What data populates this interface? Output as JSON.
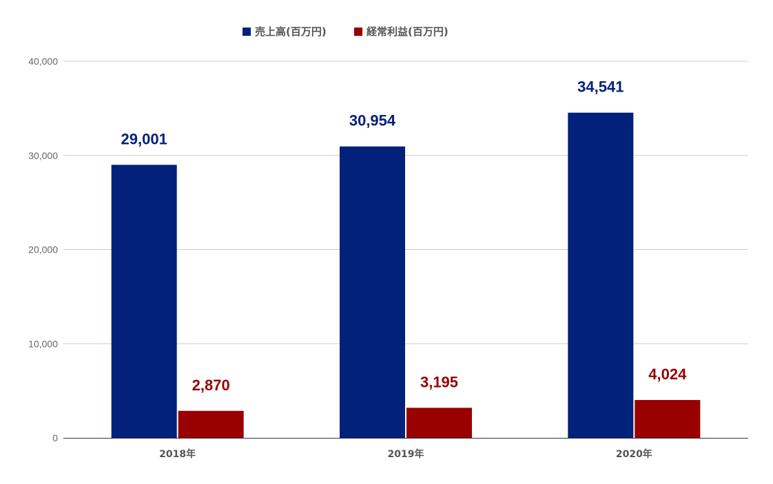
{
  "chart_data": {
    "type": "bar",
    "categories": [
      "2018年",
      "2019年",
      "2020年"
    ],
    "series": [
      {
        "name": "売上高(百万円)",
        "values": [
          29001,
          30954,
          34541
        ],
        "labels": [
          "29,001",
          "30,954",
          "34,541"
        ],
        "color": "#02217a"
      },
      {
        "name": "経常利益(百万円)",
        "values": [
          2870,
          3195,
          4024
        ],
        "labels": [
          "2,870",
          "3,195",
          "4,024"
        ],
        "color": "#990000"
      }
    ],
    "ylim": [
      0,
      40000
    ],
    "yticks": [
      0,
      10000,
      20000,
      30000,
      40000
    ],
    "ytick_labels": [
      "0",
      "10,000",
      "20,000",
      "30,000",
      "40,000"
    ],
    "grid": true,
    "legend_position": "top-center"
  }
}
